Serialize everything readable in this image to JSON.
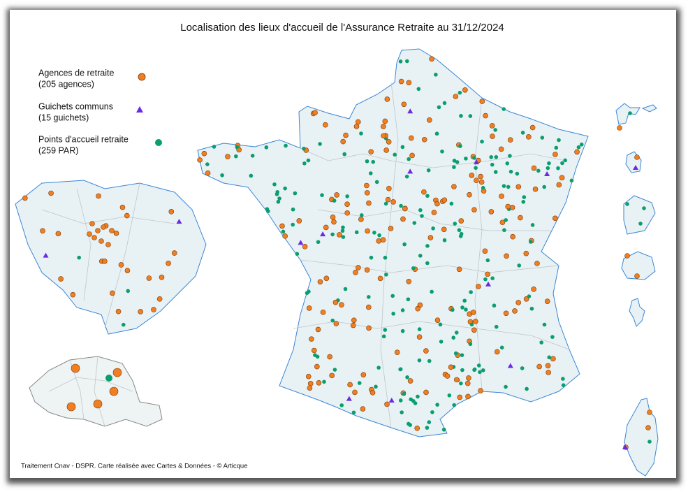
{
  "title": "Localisation des lieux d'accueil de l'Assurance Retraite au 31/12/2024",
  "legend": [
    {
      "label": "Agences de retraite",
      "note": "(205 agences)"
    },
    {
      "label": "Guichets communs",
      "note": "(15 guichets)"
    },
    {
      "label": "Points d'accueil retraite",
      "note": "(259 PAR)"
    }
  ],
  "footer": "Traitement Cnav - DSPR. Carte réalisée avec Cartes & Données - © Articque"
}
